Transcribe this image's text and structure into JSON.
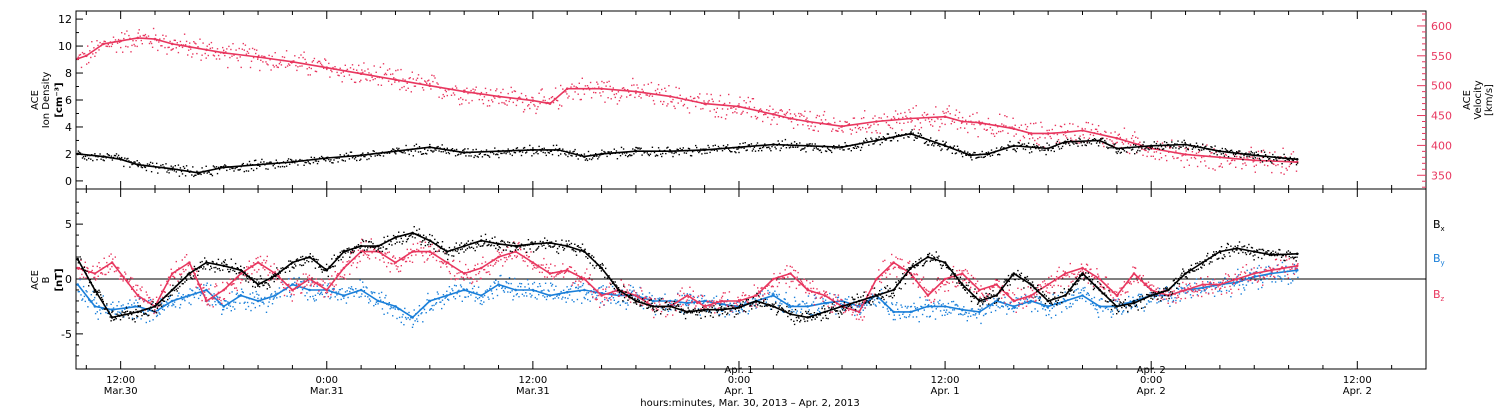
{
  "colors": {
    "black": "#000000",
    "pink": "#e8375f",
    "blue": "#1a7fd9"
  },
  "top_panel": {
    "left_label_lines": [
      "ACE",
      "Ion Density"
    ],
    "left_unit": "[cm⁻³]",
    "right_label_lines": [
      "ACE",
      "Velocity"
    ],
    "right_unit": "[km/s]"
  },
  "bottom_panel": {
    "label_lines": [
      "ACE",
      "B"
    ],
    "unit": "[nT]",
    "legend": {
      "bx_main": "B",
      "bx_sub": "x",
      "by_main": "B",
      "by_sub": "y",
      "bz_main": "B",
      "bz_sub": "z"
    }
  },
  "x_axis": {
    "title": "hours:minutes, Mar. 30, 2013 – Apr.  2, 2013",
    "ticks": [
      {
        "t": 12,
        "time": "12:00",
        "day": "Mar.30",
        "day2": ""
      },
      {
        "t": 24,
        "time": "0:00",
        "day": "Mar.31",
        "day2": ""
      },
      {
        "t": 36,
        "time": "12:00",
        "day": "Mar.31",
        "day2": ""
      },
      {
        "t": 48,
        "time": "0:00",
        "day": "Apr. 1",
        "day2": "Apr. 1"
      },
      {
        "t": 60,
        "time": "12:00",
        "day": "Apr. 1",
        "day2": ""
      },
      {
        "t": 72,
        "time": "0:00",
        "day": "Apr. 2",
        "day2": "Apr. 2"
      },
      {
        "t": 84,
        "time": "12:00",
        "day": "Apr. 2",
        "day2": ""
      }
    ]
  },
  "chart_data": [
    {
      "type": "scatter",
      "panel": "ion-density-velocity",
      "x_unit": "hours since 00:00 Mar. 30, 2013",
      "xlim": [
        9.4,
        88
      ],
      "y_left": {
        "label": "ACE Ion Density",
        "unit": "cm⁻³",
        "lim": [
          -0.6,
          12.6
        ],
        "ticks": [
          0,
          2,
          4,
          6,
          8,
          10,
          12
        ]
      },
      "y_right": {
        "label": "ACE Velocity",
        "unit": "km/s",
        "lim": [
          327,
          625
        ],
        "ticks": [
          350,
          400,
          450,
          500,
          550,
          600
        ]
      },
      "series": [
        {
          "name": "Ion Density",
          "color": "#000000",
          "axis": "left",
          "x": [
            9.5,
            11,
            12,
            13,
            15,
            16.5,
            18,
            20,
            22,
            24,
            26,
            28,
            30,
            32,
            34,
            36,
            37.5,
            39,
            40,
            42,
            44,
            46,
            48,
            50,
            52,
            54,
            56,
            58,
            60,
            61.5,
            62.5,
            64,
            66,
            67,
            69,
            70,
            72,
            74,
            76,
            78,
            80.5
          ],
          "y": [
            2.0,
            1.8,
            1.6,
            1.2,
            0.9,
            0.6,
            1.0,
            1.2,
            1.4,
            1.7,
            1.9,
            2.2,
            2.5,
            2.1,
            2.2,
            2.3,
            2.3,
            1.8,
            2.0,
            2.2,
            2.2,
            2.3,
            2.5,
            2.7,
            2.6,
            2.5,
            3.0,
            3.5,
            2.6,
            1.9,
            2.0,
            2.6,
            2.4,
            2.9,
            3.0,
            2.4,
            2.6,
            2.7,
            2.2,
            1.9,
            1.6
          ]
        },
        {
          "name": "Velocity",
          "color": "#e8375f",
          "axis": "right",
          "x": [
            9.5,
            10,
            11,
            12,
            13,
            14,
            15,
            16,
            17,
            18,
            20,
            22,
            24,
            26,
            28,
            30,
            32,
            34,
            36,
            37,
            38,
            40,
            42,
            44,
            46,
            48,
            50,
            51,
            52,
            54,
            56,
            58,
            60,
            61,
            62,
            64,
            65,
            66,
            67,
            68,
            70,
            72,
            74,
            76,
            78,
            80.5
          ],
          "y": [
            545,
            550,
            570,
            575,
            580,
            578,
            570,
            565,
            560,
            555,
            548,
            540,
            530,
            520,
            510,
            500,
            490,
            482,
            475,
            470,
            495,
            495,
            490,
            482,
            470,
            465,
            452,
            445,
            440,
            432,
            440,
            445,
            448,
            440,
            438,
            428,
            420,
            420,
            422,
            425,
            412,
            395,
            385,
            380,
            375,
            372
          ]
        }
      ]
    },
    {
      "type": "scatter",
      "panel": "magnetic-field",
      "x_unit": "hours since 00:00 Mar. 30, 2013",
      "xlim": [
        9.4,
        88
      ],
      "y": {
        "label": "ACE B",
        "unit": "nT",
        "lim": [
          -8.2,
          8.2
        ],
        "ticks": [
          -5,
          0,
          5
        ]
      },
      "series": [
        {
          "name": "Bx",
          "color": "#000000",
          "x": [
            9.5,
            10.5,
            11.5,
            13,
            14,
            15,
            16,
            17,
            18,
            19,
            20,
            21,
            22,
            23,
            24,
            25,
            26,
            27,
            28,
            29,
            30,
            31,
            32,
            33,
            34,
            35,
            36,
            37,
            38,
            39,
            40,
            41,
            42,
            43,
            44,
            45,
            46,
            47,
            48,
            49,
            50,
            51,
            52,
            53,
            54,
            55,
            56,
            57,
            58,
            59,
            60,
            61,
            62,
            63,
            64,
            65,
            66,
            67,
            68,
            69,
            70,
            71,
            72,
            73,
            74,
            75,
            76,
            77,
            78,
            79,
            80.5
          ],
          "y": [
            1.8,
            -1.0,
            -3.5,
            -3.0,
            -2.5,
            -1.0,
            0.5,
            1.5,
            1.2,
            0.8,
            -0.5,
            0.3,
            1.5,
            2.0,
            0.8,
            2.5,
            3.0,
            3.0,
            3.8,
            4.2,
            3.5,
            2.5,
            3.0,
            3.5,
            3.2,
            3.0,
            3.2,
            3.3,
            3.0,
            2.5,
            1.0,
            -1.0,
            -2.0,
            -2.5,
            -2.5,
            -3.0,
            -2.8,
            -2.8,
            -2.6,
            -2.0,
            -2.5,
            -3.2,
            -3.5,
            -3.0,
            -2.5,
            -2.0,
            -1.5,
            -1.0,
            1.0,
            2.0,
            1.5,
            -0.5,
            -2.0,
            -1.5,
            0.5,
            -0.5,
            -2.0,
            -1.5,
            0.5,
            -1.0,
            -2.5,
            -2.2,
            -1.5,
            -1.0,
            0.5,
            1.5,
            2.5,
            2.8,
            2.5,
            2.2,
            2.3
          ]
        },
        {
          "name": "By",
          "color": "#1a7fd9",
          "x": [
            9.5,
            10.5,
            11.5,
            13,
            14,
            15,
            16,
            17,
            18,
            19,
            20,
            21,
            22,
            23,
            24,
            25,
            26,
            27,
            28,
            29,
            30,
            31,
            32,
            33,
            34,
            35,
            36,
            37,
            38,
            39,
            40,
            41,
            42,
            43,
            44,
            45,
            46,
            47,
            48,
            49,
            50,
            51,
            52,
            53,
            54,
            55,
            56,
            57,
            58,
            59,
            60,
            61,
            62,
            63,
            64,
            65,
            66,
            67,
            68,
            69,
            70,
            71,
            72,
            73,
            74,
            75,
            76,
            77,
            78,
            79,
            80.5
          ],
          "y": [
            -0.5,
            -2.5,
            -2.8,
            -2.5,
            -3.0,
            -2.0,
            -1.5,
            -1.0,
            -2.5,
            -1.5,
            -2.0,
            -1.5,
            -0.5,
            -1.0,
            -1.0,
            -1.5,
            -1.0,
            -2.0,
            -2.5,
            -3.5,
            -2.0,
            -1.5,
            -1.0,
            -1.5,
            -0.5,
            -1.0,
            -1.0,
            -1.5,
            -1.2,
            -1.0,
            -1.3,
            -1.5,
            -1.5,
            -2.0,
            -2.0,
            -2.2,
            -2.0,
            -2.3,
            -2.5,
            -2.0,
            -1.5,
            -2.5,
            -2.5,
            -2.2,
            -2.0,
            -2.5,
            -1.5,
            -3.0,
            -3.0,
            -2.5,
            -2.5,
            -2.8,
            -3.0,
            -2.0,
            -2.5,
            -2.0,
            -2.5,
            -2.0,
            -1.5,
            -2.5,
            -2.5,
            -2.0,
            -1.5,
            -1.5,
            -1.0,
            -0.8,
            -0.5,
            -0.3,
            0.2,
            0.5,
            0.8
          ]
        },
        {
          "name": "Bz",
          "color": "#e8375f",
          "x": [
            9.5,
            10.5,
            11.5,
            13,
            14,
            15,
            16,
            17,
            18,
            19,
            20,
            21,
            22,
            23,
            24,
            25,
            26,
            27,
            28,
            29,
            30,
            31,
            32,
            33,
            34,
            35,
            36,
            37,
            38,
            39,
            40,
            41,
            42,
            43,
            44,
            45,
            46,
            47,
            48,
            49,
            50,
            51,
            52,
            53,
            54,
            55,
            56,
            57,
            58,
            59,
            60,
            61,
            62,
            63,
            64,
            65,
            66,
            67,
            68,
            69,
            70,
            71,
            72,
            73,
            74,
            75,
            76,
            77,
            78,
            79,
            80.5
          ],
          "y": [
            1.0,
            0.5,
            1.5,
            -1.5,
            -2.5,
            0.5,
            1.5,
            -2.0,
            -1.0,
            0.5,
            1.5,
            0.5,
            -1.0,
            0.0,
            -1.0,
            1.0,
            2.5,
            2.5,
            1.5,
            2.5,
            2.5,
            1.5,
            0.5,
            1.0,
            2.0,
            2.5,
            1.5,
            0.5,
            0.8,
            0.0,
            -1.5,
            -1.0,
            -1.5,
            -2.5,
            -2.5,
            -1.5,
            -2.5,
            -2.0,
            -2.0,
            -1.5,
            0.0,
            0.5,
            -1.0,
            -1.5,
            -2.5,
            -3.0,
            0.0,
            1.5,
            0.5,
            -1.5,
            0.0,
            0.5,
            -1.0,
            -0.5,
            -2.0,
            -1.5,
            -0.5,
            0.5,
            1.0,
            0.0,
            -1.5,
            0.5,
            -1.0,
            -1.5,
            -1.0,
            -0.5,
            -0.5,
            0.0,
            0.5,
            0.8,
            1.2
          ]
        }
      ]
    }
  ]
}
